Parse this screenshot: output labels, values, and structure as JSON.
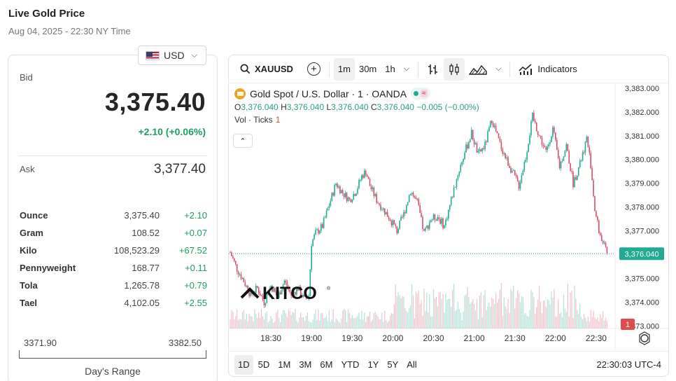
{
  "header": {
    "title": "Live Gold Price",
    "datetime": "Aug 04, 2025 - 22:30 NY Time"
  },
  "currency": {
    "selected": "USD",
    "icon": "us-flag-icon"
  },
  "quote": {
    "bid_label": "Bid",
    "bid": "3,375.40",
    "change": "+2.10 (+0.06%)",
    "ask_label": "Ask",
    "ask": "3,377.40"
  },
  "units": [
    {
      "name": "Ounce",
      "price": "3,375.40",
      "change": "+2.10"
    },
    {
      "name": "Gram",
      "price": "108.52",
      "change": "+0.07"
    },
    {
      "name": "Kilo",
      "price": "108,523.29",
      "change": "+67.52"
    },
    {
      "name": "Pennyweight",
      "price": "168.77",
      "change": "+0.11"
    },
    {
      "name": "Tola",
      "price": "1,265.78",
      "change": "+0.79"
    },
    {
      "name": "Tael",
      "price": "4,102.05",
      "change": "+2.55"
    }
  ],
  "days_range": {
    "low": "3371.90",
    "high": "3382.50",
    "label": "Day's Range"
  },
  "toolbar": {
    "symbol": "XAUUSD",
    "intervals": [
      "1m",
      "30m",
      "1h"
    ],
    "active_interval": "1m",
    "indicators_label": "Indicators"
  },
  "legend": {
    "title": "Gold Spot / U.S. Dollar · 1 · OANDA",
    "open_key": "O",
    "open": "3,376.040",
    "high_key": "H",
    "high": "3,376.040",
    "low_key": "L",
    "low": "3,376.040",
    "close_key": "C",
    "close": "3,376.040",
    "change": "−0.005 (−0.00%)",
    "vol_label": "Vol · Ticks",
    "vol_value": "1"
  },
  "watermark": "KITCO",
  "ranges": [
    "1D",
    "5D",
    "1M",
    "3M",
    "6M",
    "YTD",
    "1Y",
    "5Y",
    "All"
  ],
  "active_range": "1D",
  "clock": "22:30:03 UTC-4",
  "colors": {
    "up": "#22ab94",
    "down": "#d4506a",
    "accent": "#1f9d62",
    "price_tag": "#22ab94",
    "vol_tag": "#e04b4b"
  },
  "chart_data": {
    "type": "candlestick",
    "y_ticks": [
      "3,383.000",
      "3,382.000",
      "3,381.000",
      "3,380.000",
      "3,379.000",
      "3,378.000",
      "3,377.000",
      "3,375.000",
      "3,374.000",
      "3,373.000"
    ],
    "ylim": [
      3372.9,
      3383.2
    ],
    "x_ticks": [
      "18:30",
      "19:00",
      "19:30",
      "20:00",
      "20:30",
      "21:00",
      "21:30",
      "22:00",
      "22:30"
    ],
    "x_tick_minutes": [
      1110,
      1140,
      1170,
      1200,
      1230,
      1260,
      1290,
      1320,
      1350
    ],
    "start_minute": 1080,
    "end_minute": 1350,
    "last_price": "3,376.040",
    "last_price_value": 3376.04,
    "volume_last": "1",
    "close_path": [
      [
        1080,
        3376.1
      ],
      [
        1085,
        3375.4
      ],
      [
        1090,
        3374.9
      ],
      [
        1095,
        3374.3
      ],
      [
        1100,
        3374.6
      ],
      [
        1105,
        3374.0
      ],
      [
        1110,
        3374.7
      ],
      [
        1115,
        3374.2
      ],
      [
        1120,
        3374.9
      ],
      [
        1125,
        3374.3
      ],
      [
        1130,
        3374.6
      ],
      [
        1135,
        3374.1
      ],
      [
        1138,
        3374.3
      ],
      [
        1140,
        3376.5
      ],
      [
        1143,
        3376.9
      ],
      [
        1148,
        3377.2
      ],
      [
        1153,
        3378.1
      ],
      [
        1158,
        3379.0
      ],
      [
        1163,
        3378.6
      ],
      [
        1168,
        3378.3
      ],
      [
        1173,
        3378.7
      ],
      [
        1177,
        3379.3
      ],
      [
        1180,
        3379.5
      ],
      [
        1183,
        3378.9
      ],
      [
        1188,
        3378.3
      ],
      [
        1193,
        3377.9
      ],
      [
        1198,
        3377.5
      ],
      [
        1203,
        3377.0
      ],
      [
        1208,
        3377.7
      ],
      [
        1213,
        3378.7
      ],
      [
        1218,
        3378.2
      ],
      [
        1223,
        3376.9
      ],
      [
        1228,
        3377.5
      ],
      [
        1233,
        3377.6
      ],
      [
        1238,
        3377.2
      ],
      [
        1243,
        3378.3
      ],
      [
        1248,
        3379.4
      ],
      [
        1253,
        3380.3
      ],
      [
        1258,
        3381.1
      ],
      [
        1263,
        3380.2
      ],
      [
        1268,
        3380.6
      ],
      [
        1273,
        3381.7
      ],
      [
        1278,
        3380.8
      ],
      [
        1283,
        3380.1
      ],
      [
        1288,
        3379.5
      ],
      [
        1293,
        3378.9
      ],
      [
        1298,
        3380.1
      ],
      [
        1303,
        3381.8
      ],
      [
        1308,
        3381.0
      ],
      [
        1313,
        3380.3
      ],
      [
        1318,
        3381.3
      ],
      [
        1323,
        3379.7
      ],
      [
        1328,
        3380.6
      ],
      [
        1333,
        3379.0
      ],
      [
        1338,
        3379.8
      ],
      [
        1343,
        3380.9
      ],
      [
        1346,
        3379.8
      ],
      [
        1349,
        3377.9
      ],
      [
        1352,
        3377.0
      ],
      [
        1355,
        3376.5
      ],
      [
        1358,
        3376.0
      ]
    ]
  }
}
